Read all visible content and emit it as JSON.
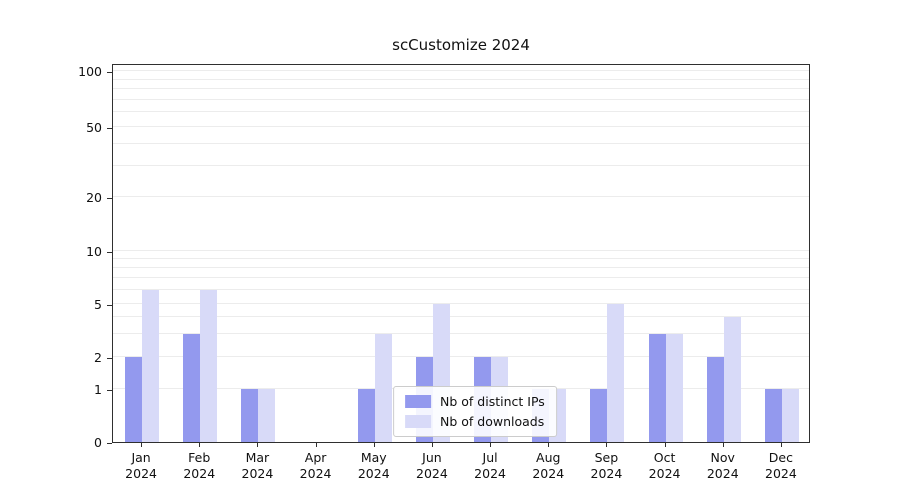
{
  "page": {
    "background": "#ffffff"
  },
  "chart_data": {
    "type": "bar",
    "title": "scCustomize 2024",
    "categories": [
      "Jan",
      "Feb",
      "Mar",
      "Apr",
      "May",
      "Jun",
      "Jul",
      "Aug",
      "Sep",
      "Oct",
      "Nov",
      "Dec"
    ],
    "year_label": "2024",
    "series": [
      {
        "name": "Nb of distinct IPs",
        "color": "#9399ee",
        "values": [
          2,
          3,
          1,
          0,
          1,
          2,
          2,
          1,
          1,
          3,
          2,
          1
        ]
      },
      {
        "name": "Nb of downloads",
        "color": "#d8daf8",
        "values": [
          6,
          6,
          1,
          0,
          3,
          5,
          2,
          1,
          5,
          3,
          4,
          1
        ]
      }
    ],
    "yticks": [
      0,
      1,
      2,
      5,
      10,
      20,
      50,
      100
    ],
    "yscale": "log-like (0,1,2,5,10,20,50,100)",
    "ylim": [
      0,
      110
    ],
    "xlabel": "",
    "ylabel": "",
    "grid": "horizontal minor log gridlines",
    "legend_position": "lower center"
  }
}
